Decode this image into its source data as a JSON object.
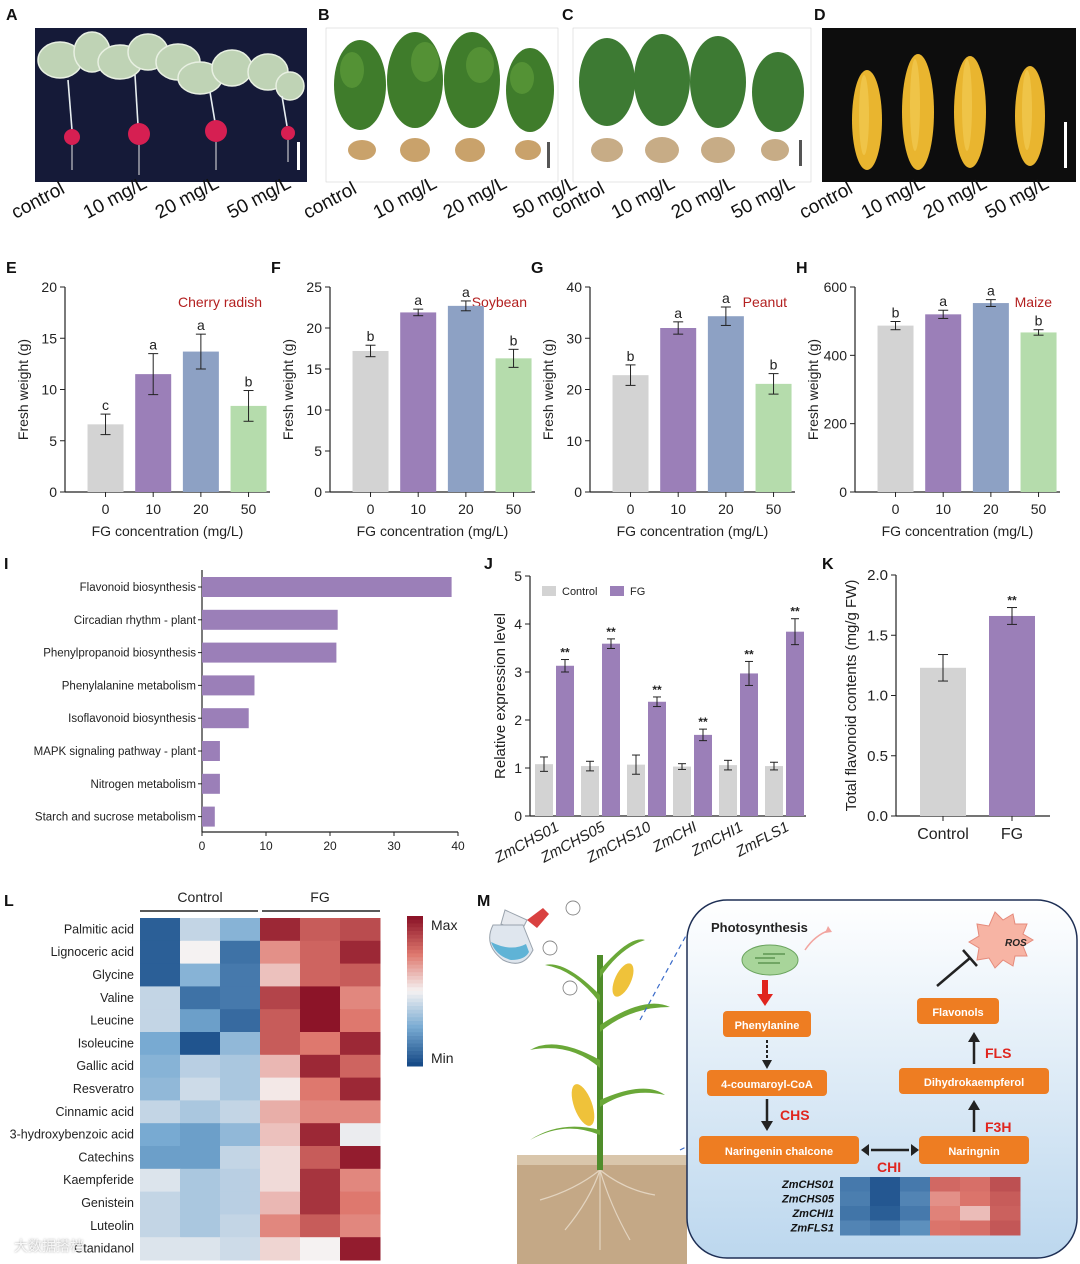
{
  "colors": {
    "grey": "#d3d3d3",
    "purple": "#9b7fb8",
    "blue": "#8da1c4",
    "green": "#b5dcac",
    "dark_red_label": "#b32020",
    "orange": "#ee7d22",
    "arrow_red": "#e0251e",
    "enzyme_red": "#e0261f"
  },
  "photos": {
    "labels": [
      "control",
      "10 mg/L",
      "20 mg/L",
      "50 mg/L"
    ],
    "panels": [
      {
        "letter": "A",
        "subject": "cherry radish plants"
      },
      {
        "letter": "B",
        "subject": "soybean plants"
      },
      {
        "letter": "C",
        "subject": "peanut plants"
      },
      {
        "letter": "D",
        "subject": "maize ears"
      }
    ]
  },
  "chart_data": [
    {
      "panel": "E",
      "type": "bar",
      "title": "Cherry radish",
      "categories": [
        "0",
        "10",
        "20",
        "50"
      ],
      "values": [
        6.6,
        11.5,
        13.7,
        8.4
      ],
      "errors": [
        1.0,
        2.0,
        1.7,
        1.5
      ],
      "letters": [
        "c",
        "a",
        "a",
        "b"
      ],
      "xlabel": "FG concentration (mg/L)",
      "ylabel": "Fresh weight (g)",
      "ylim": [
        0,
        20
      ],
      "yticks": [
        "0",
        "5",
        "10",
        "15",
        "20"
      ]
    },
    {
      "panel": "F",
      "type": "bar",
      "title": "Soybean",
      "categories": [
        "0",
        "10",
        "20",
        "50"
      ],
      "values": [
        17.2,
        21.9,
        22.7,
        16.3
      ],
      "errors": [
        0.7,
        0.4,
        0.6,
        1.1
      ],
      "letters": [
        "b",
        "a",
        "a",
        "b"
      ],
      "xlabel": "FG concentration (mg/L)",
      "ylabel": "Fresh weight (g)",
      "ylim": [
        0,
        25
      ],
      "yticks": [
        "0",
        "5",
        "10",
        "15",
        "20",
        "25"
      ]
    },
    {
      "panel": "G",
      "type": "bar",
      "title": "Peanut",
      "categories": [
        "0",
        "10",
        "20",
        "50"
      ],
      "values": [
        22.8,
        32.0,
        34.3,
        21.1
      ],
      "errors": [
        2.0,
        1.2,
        1.8,
        2.0
      ],
      "letters": [
        "b",
        "a",
        "a",
        "b"
      ],
      "xlabel": "FG concentration (mg/L)",
      "ylabel": "Fresh weight (g)",
      "ylim": [
        0,
        40
      ],
      "yticks": [
        "0",
        "10",
        "20",
        "30",
        "40"
      ]
    },
    {
      "panel": "H",
      "type": "bar",
      "title": "Maize",
      "categories": [
        "0",
        "10",
        "20",
        "50"
      ],
      "values": [
        487,
        520,
        553,
        467
      ],
      "errors": [
        12,
        12,
        10,
        8
      ],
      "letters": [
        "b",
        "a",
        "a",
        "b"
      ],
      "xlabel": "FG concentration (mg/L)",
      "ylabel": "Fresh weight (g)",
      "ylim": [
        0,
        600
      ],
      "yticks": [
        "0",
        "200",
        "400",
        "600"
      ]
    },
    {
      "panel": "I",
      "type": "bar",
      "orientation": "horizontal",
      "categories": [
        "Flavonoid biosynthesis",
        "Circadian rhythm - plant",
        "Phenylpropanoid biosynthesis",
        "Phenylalanine metabolism",
        "Isoflavonoid biosynthesis",
        "MAPK signaling pathway - plant",
        "Nitrogen metabolism",
        "Starch and sucrose metabolism"
      ],
      "values": [
        39,
        21.2,
        21.0,
        8.2,
        7.3,
        2.8,
        2.8,
        2.0
      ],
      "xlim": [
        0,
        40
      ],
      "xticks": [
        "0",
        "10",
        "20",
        "30",
        "40"
      ]
    },
    {
      "panel": "J",
      "type": "bar",
      "categories": [
        "ZmCHS01",
        "ZmCHS05",
        "ZmCHS10",
        "ZmCHI",
        "ZmCHI1",
        "ZmFLS1"
      ],
      "series": [
        {
          "name": "Control",
          "values": [
            1.08,
            1.04,
            1.07,
            1.03,
            1.06,
            1.04
          ],
          "errors": [
            0.15,
            0.1,
            0.2,
            0.06,
            0.1,
            0.08
          ]
        },
        {
          "name": "FG",
          "values": [
            3.13,
            3.59,
            2.38,
            1.69,
            2.97,
            3.84
          ],
          "errors": [
            0.13,
            0.1,
            0.1,
            0.12,
            0.25,
            0.27
          ],
          "marks": [
            "**",
            "**",
            "**",
            "**",
            "**",
            "**"
          ]
        }
      ],
      "ylabel": "Relative expression level",
      "ylim": [
        0,
        5
      ],
      "yticks": [
        "0",
        "1",
        "2",
        "3",
        "4",
        "5"
      ]
    },
    {
      "panel": "K",
      "type": "bar",
      "categories": [
        "Control",
        "FG"
      ],
      "values": [
        1.23,
        1.66
      ],
      "errors": [
        0.11,
        0.07
      ],
      "marks": [
        "",
        "**"
      ],
      "ylabel": "Total flavonoid contents (mg/g FW)",
      "ylim": [
        0,
        2.0
      ],
      "yticks": [
        "0.0",
        "0.5",
        "1.0",
        "1.5",
        "2.0"
      ]
    },
    {
      "panel": "L",
      "type": "heatmap",
      "groups": [
        "Control",
        "FG"
      ],
      "rows": [
        "Palmitic acid",
        "Lignoceric acid",
        "Glycine",
        "Valine",
        "Leucine",
        "Isoleucine",
        "Gallic acid",
        "Resveratro",
        "Cinnamic acid",
        "3-hydroxybenzoic acid",
        "Catechins",
        "Kaempferide",
        "Genistein",
        "Luteolin",
        "Ctanidanol"
      ],
      "values": [
        [
          0.05,
          0.4,
          0.28,
          0.95,
          0.82,
          0.86
        ],
        [
          0.05,
          0.5,
          0.1,
          0.7,
          0.8,
          0.95
        ],
        [
          0.05,
          0.28,
          0.12,
          0.6,
          0.8,
          0.82
        ],
        [
          0.4,
          0.1,
          0.12,
          0.88,
          1.0,
          0.72
        ],
        [
          0.4,
          0.22,
          0.08,
          0.82,
          1.0,
          0.75
        ],
        [
          0.25,
          0.02,
          0.3,
          0.82,
          0.75,
          0.95
        ],
        [
          0.28,
          0.38,
          0.35,
          0.62,
          0.95,
          0.8
        ],
        [
          0.3,
          0.42,
          0.35,
          0.52,
          0.75,
          0.95
        ],
        [
          0.4,
          0.35,
          0.4,
          0.64,
          0.72,
          0.72
        ],
        [
          0.25,
          0.22,
          0.3,
          0.6,
          0.95,
          0.48
        ],
        [
          0.22,
          0.22,
          0.4,
          0.55,
          0.82,
          0.98
        ],
        [
          0.45,
          0.35,
          0.38,
          0.55,
          0.92,
          0.72
        ],
        [
          0.4,
          0.35,
          0.38,
          0.62,
          0.92,
          0.75
        ],
        [
          0.4,
          0.35,
          0.4,
          0.72,
          0.82,
          0.72
        ],
        [
          0.45,
          0.45,
          0.42,
          0.56,
          0.5,
          0.98
        ]
      ],
      "scale_max": "Max",
      "scale_min": "Min"
    }
  ],
  "pathway": {
    "photosynthesis": "Photosynthesis",
    "ros": "ROS",
    "nodes": {
      "phenylanine": "Phenylanine",
      "coumaroyl": "4-coumaroyl-CoA",
      "chalcone": "Naringenin chalcone",
      "naringnin": "Naringnin",
      "dihydro": "Dihydrokaempferol",
      "flavonols": "Flavonols"
    },
    "enzymes": {
      "chs": "CHS",
      "chi": "CHI",
      "f3h": "F3H",
      "fls": "FLS"
    },
    "genes": [
      "ZmCHS01",
      "ZmCHS05",
      "ZmCHI1",
      "ZmFLS1"
    ],
    "gene_heat": [
      [
        0.2,
        0.05,
        0.2,
        0.85,
        0.82,
        0.95
      ],
      [
        0.22,
        0.05,
        0.25,
        0.7,
        0.8,
        0.9
      ],
      [
        0.18,
        0.08,
        0.2,
        0.75,
        0.55,
        0.88
      ],
      [
        0.25,
        0.2,
        0.3,
        0.8,
        0.82,
        0.92
      ]
    ]
  },
  "watermark": "大数据搭档"
}
